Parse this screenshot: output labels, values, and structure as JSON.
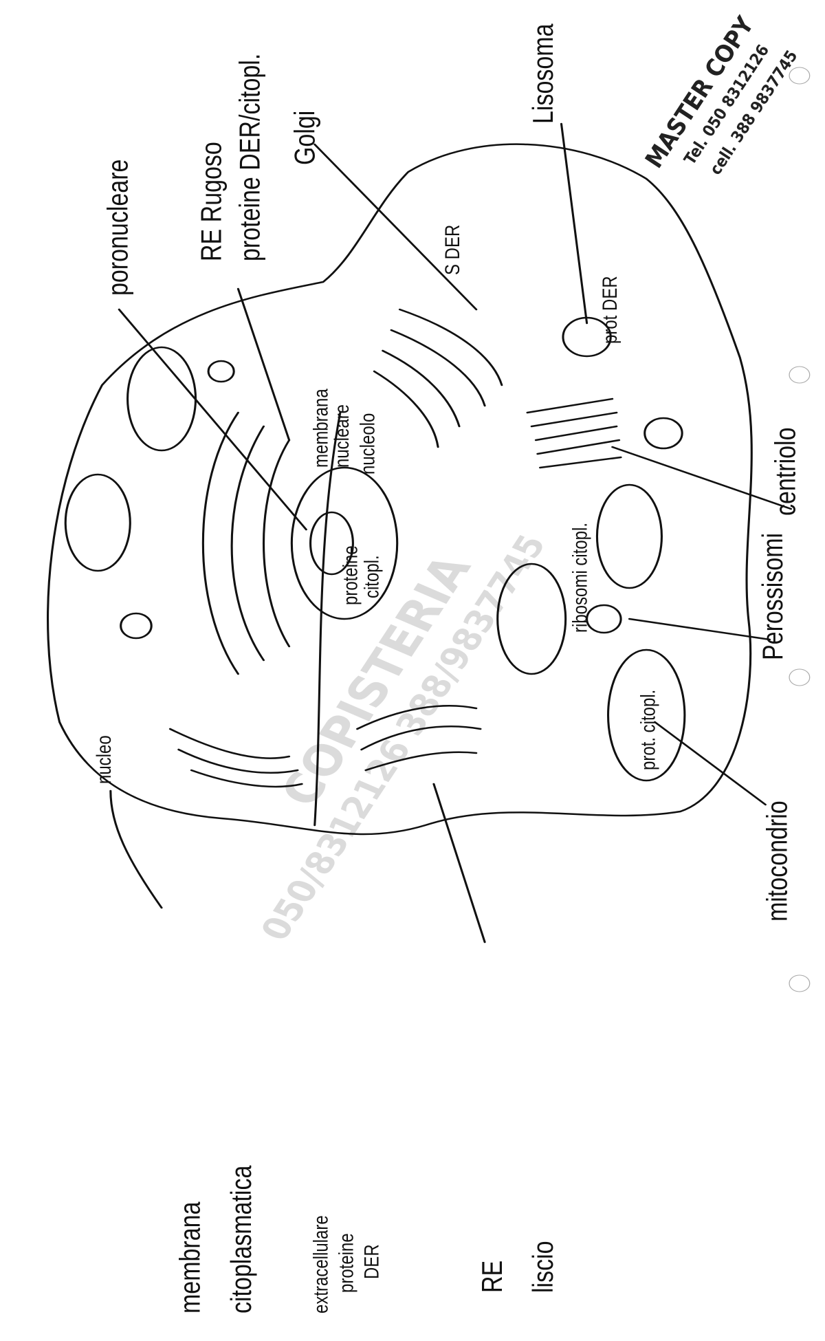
{
  "labels": {
    "poro_nucleare": "poronucleare",
    "re_rugoso": "RE Rugoso",
    "re_rugoso_note": "proteine DER/citopl.",
    "golgi": "Golgi",
    "s_der": "S DER",
    "lisosoma": "Lisosoma",
    "prot_der": "prot DER",
    "membrana_nucleare": [
      "membrana",
      "nucleare"
    ],
    "nucleolo": "nucleolo",
    "proteine_citopl": [
      "proteine",
      "citopl."
    ],
    "centriolo": "centriolo",
    "ribosomi": "ribosomi citopl.",
    "perossisomi": "Perossisomi",
    "prot_citopl": "prot. citopl.",
    "mitocondrio": "mitocondrio",
    "nucleo": "nucleo",
    "membrana_citoplasmatica": [
      "membrana",
      "citoplasmatica"
    ],
    "extracellulare": [
      "extracellulare",
      "proteine",
      "DER"
    ],
    "re_liscio": [
      "RE",
      "liscio"
    ]
  },
  "stamp": {
    "title": "MASTER COPY",
    "tel": "Tel. 050 8312126",
    "cell": "cell. 388 9837745"
  },
  "watermark": {
    "brand": "COPISTERIA",
    "phones": "050/8312126 388/9837745"
  }
}
